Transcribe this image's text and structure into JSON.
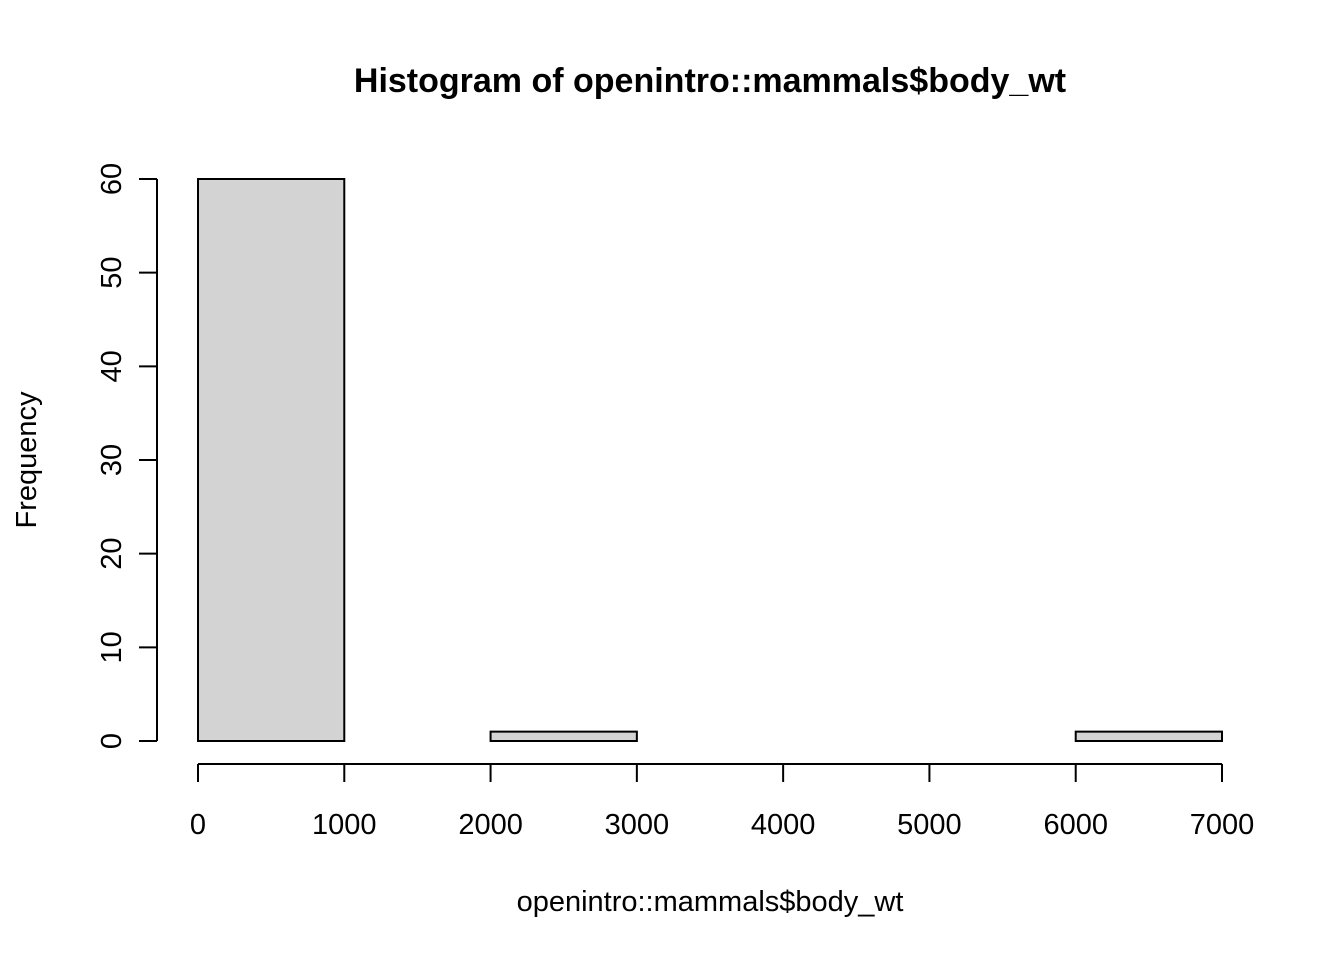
{
  "chart_data": {
    "type": "bar",
    "title": "Histogram of openintro::mammals$body_wt",
    "xlabel": "openintro::mammals$body_wt",
    "ylabel": "Frequency",
    "bins": [
      {
        "start": 0,
        "end": 1000,
        "count": 60
      },
      {
        "start": 1000,
        "end": 2000,
        "count": 0
      },
      {
        "start": 2000,
        "end": 3000,
        "count": 1
      },
      {
        "start": 3000,
        "end": 4000,
        "count": 0
      },
      {
        "start": 4000,
        "end": 5000,
        "count": 0
      },
      {
        "start": 5000,
        "end": 6000,
        "count": 0
      },
      {
        "start": 6000,
        "end": 7000,
        "count": 1
      }
    ],
    "xlim": [
      0,
      7000
    ],
    "ylim": [
      0,
      60
    ],
    "x_ticks": [
      0,
      1000,
      2000,
      3000,
      4000,
      5000,
      6000,
      7000
    ],
    "x_tick_labels": [
      "0",
      "1000",
      "2000",
      "3000",
      "4000",
      "5000",
      "6000",
      "7000"
    ],
    "y_ticks": [
      0,
      10,
      20,
      30,
      40,
      50,
      60
    ],
    "y_tick_labels": [
      "0",
      "10",
      "20",
      "30",
      "40",
      "50",
      "60"
    ],
    "bar_fill": "#d3d3d3",
    "bar_border": "#000000",
    "grid": false
  }
}
